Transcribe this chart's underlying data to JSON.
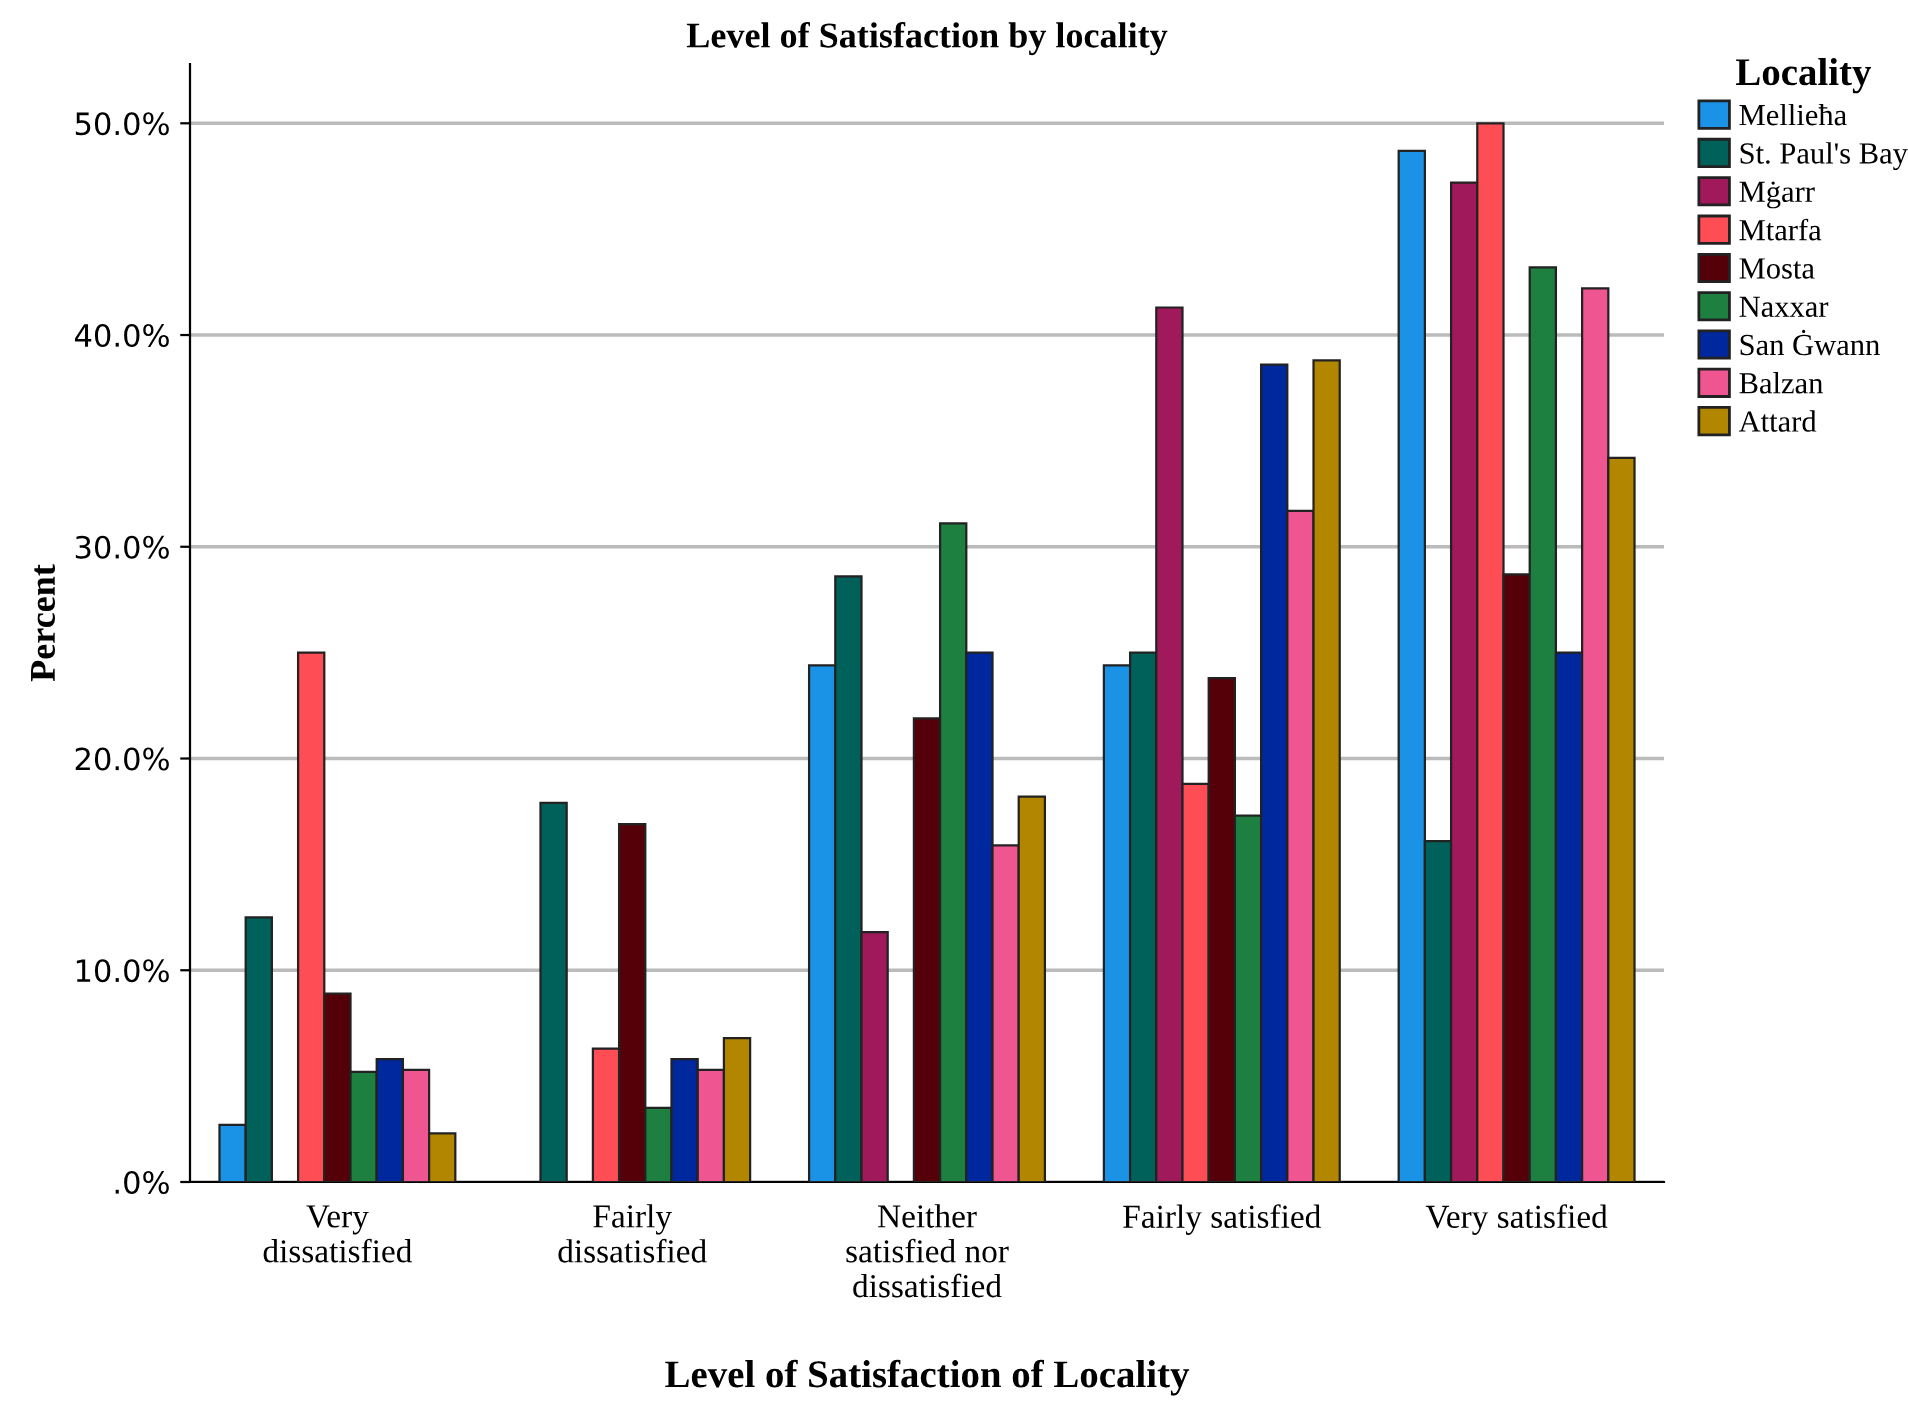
{
  "chart_data": {
    "type": "bar",
    "title": "Level of Satisfaction by locality",
    "xlabel": "Level of Satisfaction of Locality",
    "ylabel": "Percent",
    "legend_title": "Locality",
    "legend": "right",
    "categories": [
      "Very\ndissatisfied",
      "Fairly\ndissatisfied",
      "Neither\nsatisfied nor\ndissatisfied",
      "Fairly satisfied",
      "Very satisfied"
    ],
    "ylim": [
      0,
      52.8
    ],
    "yticks": [
      {
        "value": 0,
        "label": ".0%"
      },
      {
        "value": 10,
        "label": "10.0%"
      },
      {
        "value": 20,
        "label": "20.0%"
      },
      {
        "value": 30,
        "label": "30.0%"
      },
      {
        "value": 40,
        "label": "40.0%"
      },
      {
        "value": 50,
        "label": "50.0%"
      }
    ],
    "grid": "y",
    "series": [
      {
        "name": "Mellieħa",
        "color": "#1a92e6",
        "values": [
          2.7,
          0,
          24.4,
          24.4,
          48.7
        ]
      },
      {
        "name": "St. Paul's Bay",
        "color": "#00605a",
        "values": [
          12.5,
          17.9,
          28.6,
          25.0,
          16.1
        ]
      },
      {
        "name": "Mġarr",
        "color": "#a0195a",
        "values": [
          0,
          0,
          11.8,
          41.3,
          47.2
        ]
      },
      {
        "name": "Mtarfa",
        "color": "#ff4d55",
        "values": [
          25.0,
          6.3,
          0,
          18.8,
          50.0
        ]
      },
      {
        "name": "Mosta",
        "color": "#550008",
        "values": [
          8.9,
          16.9,
          21.9,
          23.8,
          28.7
        ]
      },
      {
        "name": "Naxxar",
        "color": "#1e8040",
        "values": [
          5.2,
          3.5,
          31.1,
          17.3,
          43.2
        ]
      },
      {
        "name": "San Ġwann",
        "color": "#00289e",
        "values": [
          5.8,
          5.8,
          25.0,
          38.6,
          25.0
        ]
      },
      {
        "name": "Balzan",
        "color": "#ef5590",
        "values": [
          5.3,
          5.3,
          15.9,
          31.7,
          42.2
        ]
      },
      {
        "name": "Attard",
        "color": "#b38600",
        "values": [
          2.3,
          6.8,
          18.2,
          38.8,
          34.2
        ]
      }
    ]
  }
}
